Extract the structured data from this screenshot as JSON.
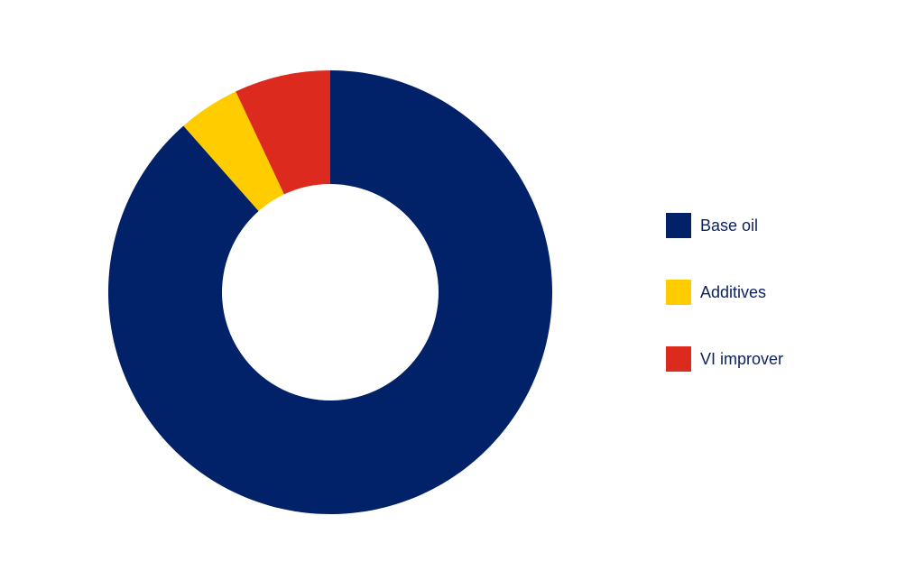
{
  "chart_data": {
    "type": "pie",
    "variant": "donut",
    "title": "",
    "categories": [
      "Base oil",
      "Additives",
      "VI improver"
    ],
    "values": [
      88.5,
      4.5,
      7.0
    ],
    "unit": "%",
    "colors": [
      "#012169",
      "#FFCC00",
      "#DD2A1F"
    ],
    "legend_position": "right",
    "start_angle_deg": 0,
    "direction": "clockwise"
  }
}
